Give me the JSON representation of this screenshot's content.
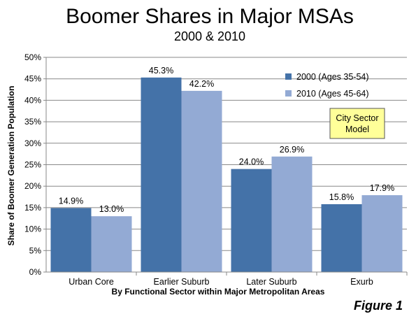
{
  "chart_data": {
    "type": "bar",
    "title": "Boomer Shares in Major MSAs",
    "subtitle": "2000 & 2010",
    "xlabel": "By Functional Sector within Major Metropolitan Areas",
    "ylabel": "Share of Boomer Generation Population",
    "categories": [
      "Urban Core",
      "Earlier Suburb",
      "Later Suburb",
      "Exurb"
    ],
    "series": [
      {
        "name": "2000 (Ages 35-54)",
        "color": "#4472A8",
        "values": [
          14.9,
          45.3,
          24.0,
          15.8
        ],
        "labels": [
          "14.9%",
          "45.3%",
          "24.0%",
          "15.8%"
        ]
      },
      {
        "name": "2010 (Ages 45-64)",
        "color": "#93AAD4",
        "values": [
          13.0,
          42.2,
          26.9,
          17.9
        ],
        "labels": [
          "13.0%",
          "42.2%",
          "26.9%",
          "17.9%"
        ]
      }
    ],
    "ylim": [
      0,
      50
    ],
    "yticks": [
      0,
      5,
      10,
      15,
      20,
      25,
      30,
      35,
      40,
      45,
      50
    ],
    "ytick_labels": [
      "0%",
      "5%",
      "10%",
      "15%",
      "20%",
      "25%",
      "30%",
      "35%",
      "40%",
      "45%",
      "50%"
    ],
    "grid": true,
    "legend_position": "top-right",
    "annotation": {
      "lines": [
        "City Sector",
        "Model"
      ],
      "fill": "#FFFF99"
    },
    "footer": "Figure 1"
  }
}
